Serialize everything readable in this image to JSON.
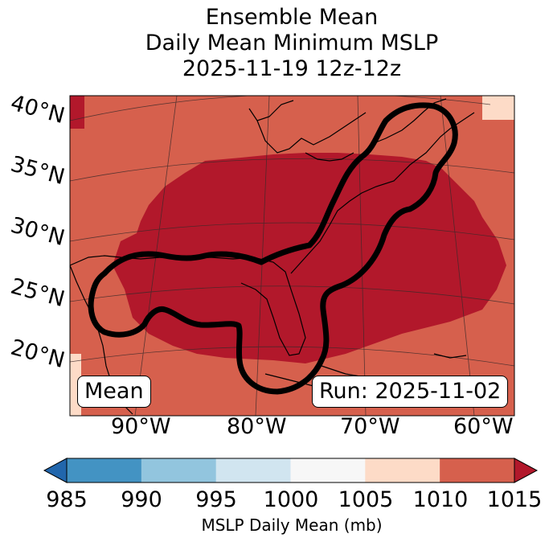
{
  "title": {
    "line1": "Ensemble Mean",
    "line2": "Daily Mean Minimum MSLP",
    "line3": "2025-11-19 12z-12z"
  },
  "map": {
    "lat_labels": [
      "40°N",
      "35°N",
      "30°N",
      "25°N",
      "20°N"
    ],
    "lon_labels": [
      "90°W",
      "80°W",
      "70°W",
      "60°W"
    ],
    "badge_left": "Mean",
    "badge_right": "Run: 2025-11-02",
    "field_colors": {
      "outer": "#d6604d",
      "inner": "#b2182b",
      "light": "#fddbc7"
    }
  },
  "colorbar": {
    "ticks": [
      "985",
      "990",
      "995",
      "1000",
      "1005",
      "1010",
      "1015"
    ],
    "colors": [
      "#4393c3",
      "#92c5de",
      "#d1e5f0",
      "#f7f7f7",
      "#fddbc7",
      "#d6604d"
    ],
    "under_color": "#2166ac",
    "over_color": "#b2182b",
    "label": "MSLP Daily Mean (mb)"
  }
}
